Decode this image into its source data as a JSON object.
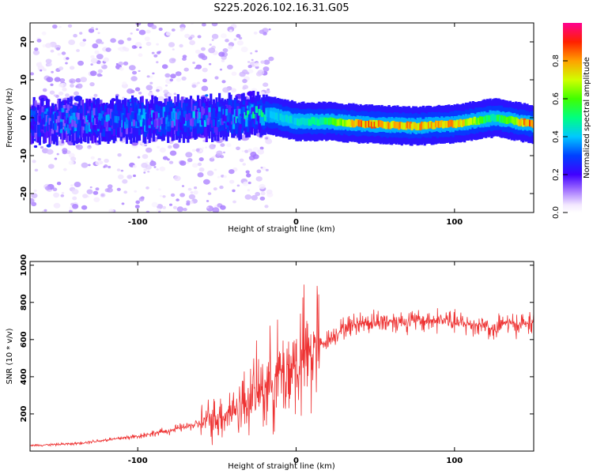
{
  "figure_title": "S225.2026.102.16.31.G05",
  "chart_data": [
    {
      "type": "heatmap",
      "title": "S225.2026.102.16.31.G05",
      "xlabel": "Height of straight line (km)",
      "ylabel": "Frequency (Hz)",
      "xlim": [
        -168,
        150
      ],
      "ylim": [
        -25,
        25
      ],
      "xticks": [
        -100,
        0,
        100
      ],
      "yticks": [
        -20,
        -10,
        0,
        10,
        20
      ],
      "colorbar": {
        "label": "Normalized spectral amplitude",
        "range": [
          0,
          1
        ],
        "ticks": [
          0.0,
          0.2,
          0.4,
          0.6,
          0.8
        ],
        "colors": [
          "#ffffff",
          "#e9d4ff",
          "#9c6bff",
          "#5a00ee",
          "#0000ff",
          "#00c8ff",
          "#00ff40",
          "#c8ff00",
          "#ff8000",
          "#ff0000",
          "#ff0080"
        ]
      },
      "ridge": [
        {
          "height_km": -168,
          "frequency_hz": -1,
          "amplitude": 0.25
        },
        {
          "height_km": -100,
          "frequency_hz": -0.5,
          "amplitude": 0.3
        },
        {
          "height_km": -50,
          "frequency_hz": 0,
          "amplitude": 0.3
        },
        {
          "height_km": -20,
          "frequency_hz": 1,
          "amplitude": 0.4
        },
        {
          "height_km": 0,
          "frequency_hz": -1,
          "amplitude": 0.45
        },
        {
          "height_km": 20,
          "frequency_hz": -1,
          "amplitude": 0.55
        },
        {
          "height_km": 40,
          "frequency_hz": -1.6,
          "amplitude": 0.85
        },
        {
          "height_km": 75,
          "frequency_hz": -2.2,
          "amplitude": 0.8
        },
        {
          "height_km": 100,
          "frequency_hz": -1.6,
          "amplitude": 0.8
        },
        {
          "height_km": 125,
          "frequency_hz": 0,
          "amplitude": 0.5
        },
        {
          "height_km": 150,
          "frequency_hz": -1.8,
          "amplitude": 0.95
        }
      ]
    },
    {
      "type": "line",
      "xlabel": "Height of straight line (km)",
      "ylabel": "SNR (10 * v/v)",
      "xlim": [
        -168,
        150
      ],
      "ylim": [
        0,
        1020
      ],
      "xticks": [
        -100,
        0,
        100
      ],
      "yticks": [
        200,
        400,
        600,
        800,
        1000
      ],
      "line_color": "#ee3333",
      "x": [
        -168,
        -140,
        -120,
        -100,
        -80,
        -60,
        -50,
        -40,
        -30,
        -20,
        -10,
        0,
        10,
        20,
        30,
        40,
        60,
        80,
        95,
        100,
        110,
        120,
        125,
        130,
        140,
        150
      ],
      "y": [
        30,
        40,
        60,
        80,
        110,
        150,
        180,
        220,
        280,
        350,
        420,
        460,
        540,
        600,
        660,
        690,
        700,
        700,
        705,
        690,
        680,
        680,
        640,
        690,
        680,
        690
      ]
    }
  ]
}
